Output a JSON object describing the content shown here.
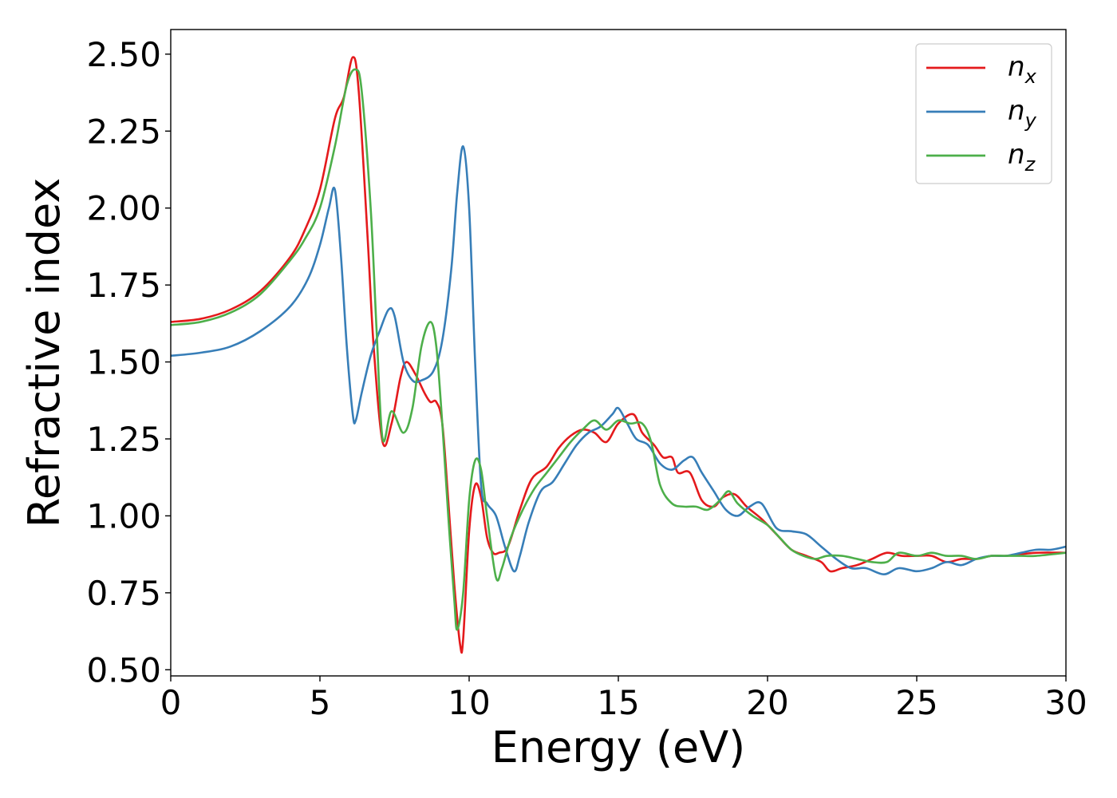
{
  "chart_data": {
    "type": "line",
    "title": "",
    "xlabel": "Energy (eV)",
    "ylabel": "Refractive index",
    "xlim": [
      0,
      30
    ],
    "ylim": [
      0.48,
      2.58
    ],
    "grid": false,
    "legend_position": "top-right",
    "x_ticks": [
      {
        "value": 0,
        "label": "0"
      },
      {
        "value": 5,
        "label": "5"
      },
      {
        "value": 10,
        "label": "10"
      },
      {
        "value": 15,
        "label": "15"
      },
      {
        "value": 20,
        "label": "20"
      },
      {
        "value": 25,
        "label": "25"
      },
      {
        "value": 30,
        "label": "30"
      }
    ],
    "y_ticks": [
      {
        "value": 0.5,
        "label": "0.50"
      },
      {
        "value": 0.75,
        "label": "0.75"
      },
      {
        "value": 1.0,
        "label": "1.00"
      },
      {
        "value": 1.25,
        "label": "1.25"
      },
      {
        "value": 1.5,
        "label": "1.50"
      },
      {
        "value": 1.75,
        "label": "1.75"
      },
      {
        "value": 2.0,
        "label": "2.00"
      },
      {
        "value": 2.25,
        "label": "2.25"
      },
      {
        "value": 2.5,
        "label": "2.50"
      }
    ],
    "series": [
      {
        "name": "n",
        "subscript": "x",
        "color": "#e41a1c",
        "points": [
          [
            0,
            1.63
          ],
          [
            1,
            1.64
          ],
          [
            2,
            1.67
          ],
          [
            3,
            1.73
          ],
          [
            4,
            1.84
          ],
          [
            4.5,
            1.93
          ],
          [
            5,
            2.06
          ],
          [
            5.5,
            2.29
          ],
          [
            5.8,
            2.36
          ],
          [
            6.1,
            2.49
          ],
          [
            6.3,
            2.38
          ],
          [
            6.6,
            1.9
          ],
          [
            6.8,
            1.55
          ],
          [
            7.1,
            1.24
          ],
          [
            7.4,
            1.3
          ],
          [
            7.7,
            1.45
          ],
          [
            7.9,
            1.5
          ],
          [
            8.2,
            1.46
          ],
          [
            8.5,
            1.4
          ],
          [
            8.7,
            1.37
          ],
          [
            8.9,
            1.37
          ],
          [
            9.1,
            1.3
          ],
          [
            9.3,
            1.05
          ],
          [
            9.5,
            0.78
          ],
          [
            9.7,
            0.58
          ],
          [
            9.8,
            0.6
          ],
          [
            10.0,
            0.95
          ],
          [
            10.2,
            1.1
          ],
          [
            10.4,
            1.06
          ],
          [
            10.6,
            0.93
          ],
          [
            10.8,
            0.88
          ],
          [
            11.0,
            0.88
          ],
          [
            11.3,
            0.9
          ],
          [
            11.7,
            1.02
          ],
          [
            12.1,
            1.12
          ],
          [
            12.6,
            1.16
          ],
          [
            13.0,
            1.22
          ],
          [
            13.4,
            1.26
          ],
          [
            13.8,
            1.28
          ],
          [
            14.2,
            1.27
          ],
          [
            14.6,
            1.24
          ],
          [
            15.0,
            1.3
          ],
          [
            15.5,
            1.33
          ],
          [
            15.8,
            1.27
          ],
          [
            16.2,
            1.23
          ],
          [
            16.5,
            1.19
          ],
          [
            16.8,
            1.19
          ],
          [
            17.0,
            1.14
          ],
          [
            17.4,
            1.14
          ],
          [
            17.8,
            1.05
          ],
          [
            18.2,
            1.03
          ],
          [
            18.5,
            1.06
          ],
          [
            18.9,
            1.07
          ],
          [
            19.3,
            1.03
          ],
          [
            19.8,
            0.99
          ],
          [
            20.3,
            0.94
          ],
          [
            20.8,
            0.89
          ],
          [
            21.3,
            0.87
          ],
          [
            21.8,
            0.85
          ],
          [
            22.1,
            0.82
          ],
          [
            22.5,
            0.83
          ],
          [
            23.0,
            0.84
          ],
          [
            23.5,
            0.86
          ],
          [
            24.0,
            0.88
          ],
          [
            24.5,
            0.87
          ],
          [
            25.0,
            0.87
          ],
          [
            25.5,
            0.87
          ],
          [
            26.0,
            0.85
          ],
          [
            26.5,
            0.86
          ],
          [
            27.0,
            0.86
          ],
          [
            27.5,
            0.87
          ],
          [
            28.0,
            0.87
          ],
          [
            29.0,
            0.88
          ],
          [
            30.0,
            0.88
          ]
        ]
      },
      {
        "name": "n",
        "subscript": "y",
        "color": "#377eb8",
        "points": [
          [
            0,
            1.52
          ],
          [
            1,
            1.53
          ],
          [
            2,
            1.55
          ],
          [
            3,
            1.6
          ],
          [
            4,
            1.68
          ],
          [
            4.6,
            1.77
          ],
          [
            5.0,
            1.88
          ],
          [
            5.3,
            2.0
          ],
          [
            5.5,
            2.06
          ],
          [
            5.7,
            1.85
          ],
          [
            5.9,
            1.55
          ],
          [
            6.1,
            1.33
          ],
          [
            6.2,
            1.31
          ],
          [
            6.4,
            1.4
          ],
          [
            6.7,
            1.52
          ],
          [
            7.0,
            1.6
          ],
          [
            7.3,
            1.67
          ],
          [
            7.5,
            1.65
          ],
          [
            7.8,
            1.5
          ],
          [
            8.1,
            1.44
          ],
          [
            8.4,
            1.44
          ],
          [
            8.8,
            1.47
          ],
          [
            9.1,
            1.57
          ],
          [
            9.4,
            1.8
          ],
          [
            9.6,
            2.05
          ],
          [
            9.8,
            2.2
          ],
          [
            10.0,
            2.0
          ],
          [
            10.2,
            1.5
          ],
          [
            10.4,
            1.1
          ],
          [
            10.6,
            1.04
          ],
          [
            10.9,
            1.0
          ],
          [
            11.2,
            0.9
          ],
          [
            11.5,
            0.82
          ],
          [
            11.7,
            0.87
          ],
          [
            12.0,
            0.98
          ],
          [
            12.4,
            1.08
          ],
          [
            12.8,
            1.11
          ],
          [
            13.2,
            1.17
          ],
          [
            13.6,
            1.23
          ],
          [
            14.0,
            1.27
          ],
          [
            14.4,
            1.29
          ],
          [
            14.8,
            1.33
          ],
          [
            15.0,
            1.35
          ],
          [
            15.3,
            1.3
          ],
          [
            15.6,
            1.25
          ],
          [
            16.0,
            1.23
          ],
          [
            16.4,
            1.17
          ],
          [
            16.8,
            1.15
          ],
          [
            17.2,
            1.18
          ],
          [
            17.5,
            1.19
          ],
          [
            17.8,
            1.14
          ],
          [
            18.2,
            1.08
          ],
          [
            18.6,
            1.02
          ],
          [
            19.0,
            1.0
          ],
          [
            19.4,
            1.03
          ],
          [
            19.8,
            1.04
          ],
          [
            20.3,
            0.96
          ],
          [
            20.8,
            0.95
          ],
          [
            21.3,
            0.94
          ],
          [
            21.8,
            0.9
          ],
          [
            22.3,
            0.86
          ],
          [
            22.8,
            0.83
          ],
          [
            23.3,
            0.83
          ],
          [
            23.9,
            0.81
          ],
          [
            24.4,
            0.83
          ],
          [
            25.0,
            0.82
          ],
          [
            25.5,
            0.83
          ],
          [
            26.0,
            0.85
          ],
          [
            26.5,
            0.84
          ],
          [
            27.0,
            0.86
          ],
          [
            27.5,
            0.87
          ],
          [
            28.0,
            0.87
          ],
          [
            28.5,
            0.88
          ],
          [
            29.0,
            0.89
          ],
          [
            29.5,
            0.89
          ],
          [
            30.0,
            0.9
          ]
        ]
      },
      {
        "name": "n",
        "subscript": "z",
        "color": "#4daf4a",
        "points": [
          [
            0,
            1.62
          ],
          [
            1,
            1.63
          ],
          [
            2,
            1.66
          ],
          [
            3,
            1.72
          ],
          [
            4,
            1.83
          ],
          [
            4.5,
            1.9
          ],
          [
            5.0,
            2.0
          ],
          [
            5.5,
            2.2
          ],
          [
            5.9,
            2.4
          ],
          [
            6.2,
            2.45
          ],
          [
            6.4,
            2.38
          ],
          [
            6.7,
            2.0
          ],
          [
            6.9,
            1.6
          ],
          [
            7.1,
            1.25
          ],
          [
            7.4,
            1.34
          ],
          [
            7.8,
            1.27
          ],
          [
            8.1,
            1.35
          ],
          [
            8.4,
            1.55
          ],
          [
            8.7,
            1.63
          ],
          [
            8.9,
            1.55
          ],
          [
            9.1,
            1.3
          ],
          [
            9.3,
            1.0
          ],
          [
            9.5,
            0.73
          ],
          [
            9.6,
            0.63
          ],
          [
            9.8,
            0.75
          ],
          [
            10.0,
            1.05
          ],
          [
            10.2,
            1.18
          ],
          [
            10.4,
            1.15
          ],
          [
            10.6,
            1.0
          ],
          [
            10.9,
            0.8
          ],
          [
            11.1,
            0.83
          ],
          [
            11.4,
            0.93
          ],
          [
            11.8,
            1.02
          ],
          [
            12.2,
            1.09
          ],
          [
            12.6,
            1.14
          ],
          [
            13.0,
            1.19
          ],
          [
            13.4,
            1.24
          ],
          [
            13.8,
            1.28
          ],
          [
            14.2,
            1.31
          ],
          [
            14.6,
            1.28
          ],
          [
            15.0,
            1.31
          ],
          [
            15.4,
            1.3
          ],
          [
            15.8,
            1.3
          ],
          [
            16.1,
            1.24
          ],
          [
            16.4,
            1.1
          ],
          [
            16.8,
            1.04
          ],
          [
            17.2,
            1.03
          ],
          [
            17.6,
            1.03
          ],
          [
            18.0,
            1.02
          ],
          [
            18.4,
            1.05
          ],
          [
            18.7,
            1.08
          ],
          [
            19.0,
            1.04
          ],
          [
            19.5,
            1.0
          ],
          [
            20.0,
            0.97
          ],
          [
            20.4,
            0.93
          ],
          [
            20.8,
            0.89
          ],
          [
            21.2,
            0.87
          ],
          [
            21.6,
            0.86
          ],
          [
            22.0,
            0.87
          ],
          [
            22.5,
            0.87
          ],
          [
            23.0,
            0.86
          ],
          [
            23.5,
            0.85
          ],
          [
            24.0,
            0.85
          ],
          [
            24.4,
            0.88
          ],
          [
            25.0,
            0.87
          ],
          [
            25.5,
            0.88
          ],
          [
            26.0,
            0.87
          ],
          [
            26.5,
            0.87
          ],
          [
            27.0,
            0.86
          ],
          [
            27.5,
            0.87
          ],
          [
            28.0,
            0.87
          ],
          [
            28.5,
            0.87
          ],
          [
            29.0,
            0.87
          ],
          [
            30.0,
            0.88
          ]
        ]
      }
    ]
  }
}
